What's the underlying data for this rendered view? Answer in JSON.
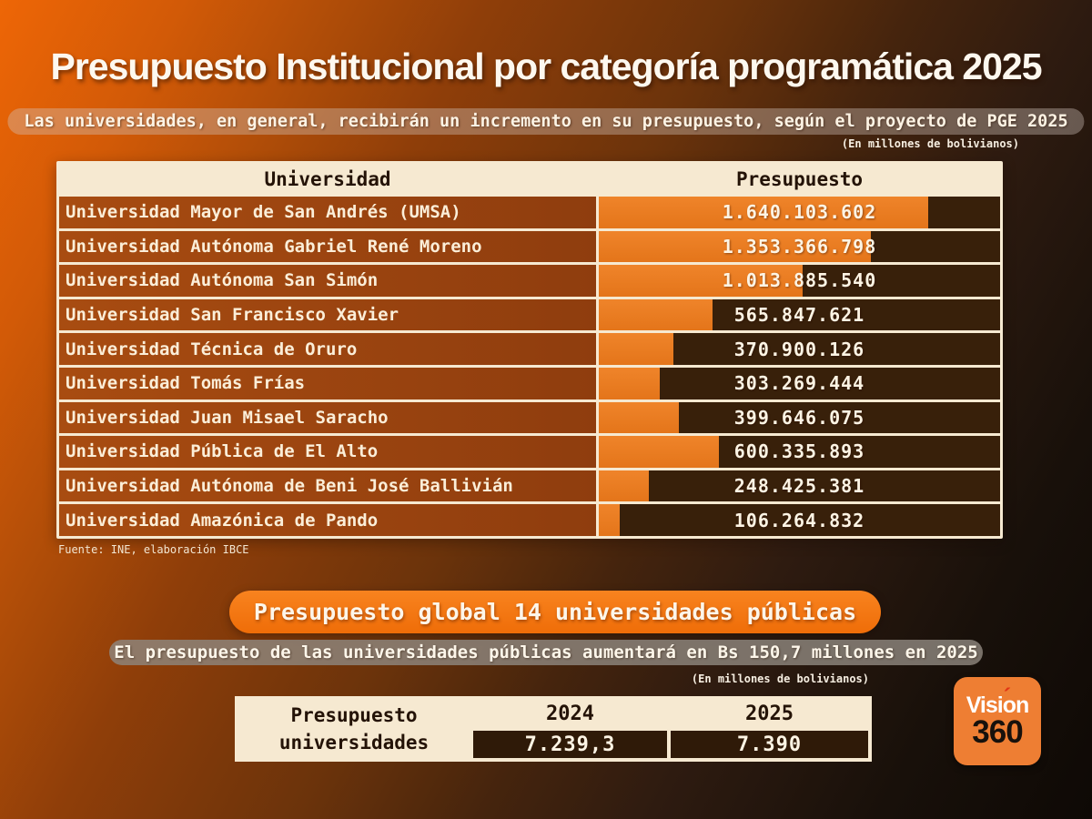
{
  "page": {
    "title": "Presupuesto Institucional por categoría programática 2025",
    "subtitle": "Las universidades, en general, recibirán un incremento en su presupuesto, según el proyecto de PGE 2025",
    "units_note_top": "(En millones de bolivianos)",
    "source": "Fuente: INE, elaboración IBCE"
  },
  "colors": {
    "background_orange": "#ee6606",
    "background_dark": "#0e0905",
    "bar_orange": "#e97c1e",
    "bar_track": "#38200a",
    "row_label_bg": "#9c4510",
    "cream": "#f6e9d1",
    "dark_text": "#241307",
    "pill_orange": "#f2760f",
    "banner_gray": "#8e8680"
  },
  "chart_data": {
    "type": "bar",
    "orientation": "horizontal",
    "title": "Presupuesto Institucional por categoría programática 2025",
    "subtitle": "Las universidades, en general, recibirán un incremento en su presupuesto, según el proyecto de PGE 2025",
    "units": "(En millones de bolivianos)",
    "columns": [
      "Universidad",
      "Presupuesto"
    ],
    "bar_scale_max": 2000000000,
    "rows": [
      {
        "label": "Universidad Mayor de San Andrés (UMSA)",
        "value": 1640103602,
        "display": "1.640.103.602"
      },
      {
        "label": "Universidad Autónoma Gabriel René Moreno",
        "value": 1353366798,
        "display": "1.353.366.798"
      },
      {
        "label": "Universidad Autónoma San Simón",
        "value": 1013885540,
        "display": "1.013.885.540"
      },
      {
        "label": "Universidad San Francisco Xavier",
        "value": 565847621,
        "display": "565.847.621"
      },
      {
        "label": "Universidad Técnica de Oruro",
        "value": 370900126,
        "display": "370.900.126"
      },
      {
        "label": "Universidad Tomás Frías",
        "value": 303269444,
        "display": "303.269.444"
      },
      {
        "label": "Universidad Juan Misael Saracho",
        "value": 399646075,
        "display": "399.646.075"
      },
      {
        "label": "Universidad Pública de El Alto",
        "value": 600335893,
        "display": "600.335.893"
      },
      {
        "label": "Universidad Autónoma de Beni José Ballivián",
        "value": 248425381,
        "display": "248.425.381"
      },
      {
        "label": "Universidad Amazónica de Pando",
        "value": 106264832,
        "display": "106.264.832"
      }
    ],
    "source": "Fuente: INE, elaboración IBCE"
  },
  "summary": {
    "pill": "Presupuesto global 14 universidades públicas",
    "banner": "El presupuesto de las universidades públicas aumentará en Bs 150,7 millones en 2025",
    "units_note": "(En millones de bolivianos)",
    "table": {
      "row_label_line1": "Presupuesto",
      "row_label_line2": "universidades",
      "col_headers": [
        "2024",
        "2025"
      ],
      "values": [
        "7.239,3",
        "7.390"
      ]
    }
  },
  "logo": {
    "line1": "Visión",
    "line2": "360"
  }
}
